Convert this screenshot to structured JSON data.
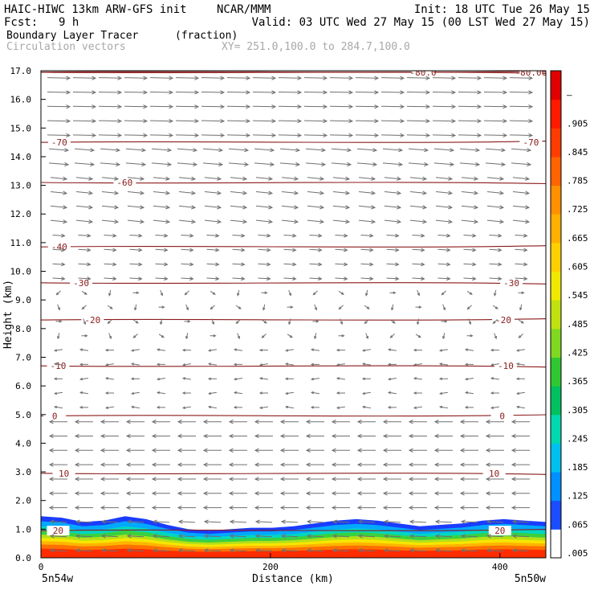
{
  "header": {
    "model": "HAIC-HIWC 13km ARW-GFS init",
    "org": "NCAR/MMM",
    "init": "Init: 18 UTC Tue 26 May 15",
    "fcst_label": "Fcst:",
    "fcst_value": "9 h",
    "valid": "Valid: 03 UTC Wed 27 May 15 (00 LST Wed 27 May 15)",
    "field": "Boundary Layer Tracer",
    "field_units": "(fraction)",
    "overlay": "Circulation vectors",
    "xy": "XY= 251.0,100.0 to 284.7,100.0"
  },
  "chart_data": {
    "type": "cross-section",
    "ylabel": "Height (km)",
    "xlabel": "Distance (km)",
    "ylim": [
      0,
      17
    ],
    "xlim": [
      0,
      440
    ],
    "yticks": [
      "0.0",
      "1.0",
      "2.0",
      "3.0",
      "4.0",
      "5.0",
      "6.0",
      "7.0",
      "8.0",
      "9.0",
      "10.0",
      "11.0",
      "12.0",
      "13.0",
      "14.0",
      "15.0",
      "16.0",
      "17.0"
    ],
    "xticks": [
      {
        "value": 0,
        "label": "0"
      },
      {
        "value": 200,
        "label": "200"
      },
      {
        "value": 400,
        "label": "400"
      }
    ],
    "x_end_labels": {
      "left": "5n54w",
      "right": "5n50w"
    },
    "colorbar_labels": [
      ".005",
      ".065",
      ".125",
      ".185",
      ".245",
      ".305",
      ".365",
      ".425",
      ".485",
      ".545",
      ".605",
      ".665",
      ".725",
      ".785",
      ".845",
      ".905",
      "–"
    ],
    "colorbar_colors": [
      "#ffffff",
      "#1a4dff",
      "#0090ff",
      "#00c0f0",
      "#00d8b0",
      "#00c060",
      "#30c830",
      "#80d820",
      "#c0e010",
      "#f0e800",
      "#ffd000",
      "#ffb000",
      "#ff9000",
      "#ff6400",
      "#ff3c00",
      "#ff1a00",
      "#e00000"
    ],
    "temperature_contours": [
      {
        "label": "20",
        "height": 0.95
      },
      {
        "label": "10",
        "height": 2.95
      },
      {
        "label": "0",
        "height": 4.95
      },
      {
        "label": "-10",
        "height": 6.7
      },
      {
        "label": "-20",
        "height": 8.3
      },
      {
        "label": "-30",
        "height": 9.6
      },
      {
        "label": "-40",
        "height": 10.85
      },
      {
        "label": "-60",
        "height": 13.1
      },
      {
        "label": "-70",
        "height": 14.5
      },
      {
        "label": "-80.0",
        "height": 16.95
      },
      {
        "label": "-80.00",
        "height": 16.95
      }
    ],
    "tracer_top_km": [
      1.45,
      1.4,
      1.25,
      1.3,
      1.45,
      1.35,
      1.15,
      1.0,
      0.95,
      1.0,
      1.05,
      1.05,
      1.1,
      1.2,
      1.3,
      1.35,
      1.3,
      1.2,
      1.1,
      1.15,
      1.2,
      1.3,
      1.35,
      1.3,
      1.25
    ],
    "wind_regimes": [
      {
        "from_km": 0,
        "to_km": 5.2,
        "direction": "westward"
      },
      {
        "from_km": 5.2,
        "to_km": 9.5,
        "direction": "weak / variable"
      },
      {
        "from_km": 9.5,
        "to_km": 13.5,
        "direction": "eastward, moderate"
      },
      {
        "from_km": 13.5,
        "to_km": 17,
        "direction": "eastward, strong"
      }
    ],
    "grid": false
  },
  "colors": {
    "contour": "#8b1a1a",
    "vector": "#707070",
    "frame": "#000000"
  }
}
